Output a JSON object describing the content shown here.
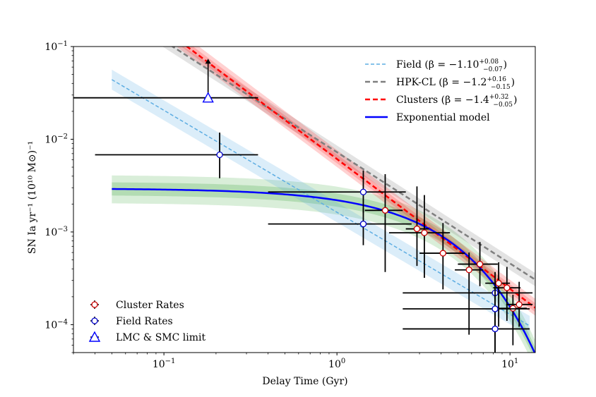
{
  "chart_data": {
    "type": "scatter",
    "title": "",
    "xlabel": "Delay Time (Gyr)",
    "ylabel": "SN Ia yr⁻¹ (10¹⁰ M⊙)⁻¹",
    "xscale": "log",
    "yscale": "log",
    "xlim": [
      0.03,
      14
    ],
    "ylim": [
      5e-05,
      0.1
    ],
    "x_ticks": [
      {
        "base": "10",
        "exp": "−1",
        "value": 0.1
      },
      {
        "base": "10",
        "exp": "0",
        "value": 1
      },
      {
        "base": "10",
        "exp": "1",
        "value": 10
      }
    ],
    "y_ticks": [
      {
        "base": "10",
        "exp": "−4",
        "value": 0.0001
      },
      {
        "base": "10",
        "exp": "−3",
        "value": 0.001
      },
      {
        "base": "10",
        "exp": "−2",
        "value": 0.01
      },
      {
        "base": "10",
        "exp": "−1",
        "value": 0.1
      }
    ],
    "legend_top": [
      {
        "key": "field",
        "text": "Field (β = −1.10",
        "sup": "+0.08",
        "sub": "−0.07",
        "close": ")",
        "color": "#5dade2",
        "style": "dashed"
      },
      {
        "key": "hpk",
        "text": "HPK-CL (β = −1.2",
        "sup": "+0.16",
        "sub": "−0.15",
        "close": ")",
        "color": "#7f7f7f",
        "style": "dashed"
      },
      {
        "key": "clusters",
        "text": "Clusters (β = −1.4",
        "sup": "+0.32",
        "sub": "−0.05",
        "close": ")",
        "color": "#ff0000",
        "style": "dashed"
      },
      {
        "key": "exp",
        "text": "Exponential model",
        "sup": "",
        "sub": "",
        "close": "",
        "color": "#0000ff",
        "style": "solid"
      }
    ],
    "legend_bottom": [
      {
        "text": "Cluster Rates",
        "marker": "circle",
        "edge": "#cc0000",
        "face": "#ffffff"
      },
      {
        "text": "Field Rates",
        "marker": "circle",
        "edge": "#0000cc",
        "face": "#ffffff"
      },
      {
        "text": "LMC & SMC limit",
        "marker": "triangle",
        "edge": "#0000ff",
        "face": "#ffffff"
      }
    ],
    "models": {
      "field": {
        "x_range": [
          0.05,
          13
        ],
        "anchor_x": 1,
        "anchor_y": 0.00163,
        "slope": -1.1,
        "band": [
          0.78,
          1.28
        ],
        "color": "#5dade2"
      },
      "hpk": {
        "x_range": [
          0.05,
          14
        ],
        "anchor_x": 1,
        "anchor_y": 0.00725,
        "slope": -1.2,
        "band": [
          0.85,
          1.18
        ],
        "color": "#7f7f7f"
      },
      "clusters": {
        "x_range": [
          0.05,
          14
        ],
        "anchor_x": 1,
        "anchor_y": 0.00612,
        "slope": -1.4,
        "band": [
          0.82,
          1.25
        ],
        "color": "#ff0000"
      },
      "exponential": {
        "x_range": [
          0.05,
          14
        ],
        "amplitude": 0.00295,
        "tau": 3.4,
        "band": [
          0.7,
          1.4
        ],
        "color": "#0000ff"
      }
    },
    "cluster_rates": [
      {
        "x": 1.9,
        "y": 0.00171,
        "xerr": [
          1.45,
          2.4
        ],
        "yerr": [
          0.00037,
          0.0042
        ]
      },
      {
        "x": 2.9,
        "y": 0.00108,
        "xerr": [
          2.5,
          3.4
        ],
        "yerr": [
          0.00043,
          0.0031
        ]
      },
      {
        "x": 3.2,
        "y": 0.00098,
        "xerr": [
          2.0,
          4.5
        ],
        "yerr": [
          0.00032,
          0.0025
        ]
      },
      {
        "x": 4.1,
        "y": 0.00059,
        "xerr": [
          3.0,
          5.5
        ],
        "yerr": [
          0.00024,
          0.00125
        ]
      },
      {
        "x": 5.8,
        "y": 0.00039,
        "xerr": [
          4.8,
          7.0
        ],
        "yerr": [
          7.8e-05,
          0.0006
        ]
      },
      {
        "x": 6.7,
        "y": 0.00045,
        "xerr": [
          5.0,
          8.5
        ],
        "yerr": [
          0.00026,
          0.00078
        ]
      },
      {
        "x": 8.6,
        "y": 0.00028,
        "xerr": [
          7.2,
          10.0
        ],
        "yerr": [
          9.5e-05,
          0.00047
        ]
      },
      {
        "x": 9.6,
        "y": 0.00025,
        "xerr": [
          8.0,
          11.5
        ],
        "yerr": [
          0.00011,
          0.00042
        ]
      },
      {
        "x": 10.4,
        "y": 0.00015,
        "xerr": [
          8.5,
          12.5
        ],
        "yerr": [
          6e-05,
          0.00021
        ]
      },
      {
        "x": 11.3,
        "y": 0.000165,
        "xerr": [
          9.5,
          13.5
        ],
        "yerr": [
          9.5e-05,
          0.00029
        ]
      }
    ],
    "field_rates": [
      {
        "x": 0.21,
        "y": 0.0068,
        "xerr": [
          0.04,
          0.35
        ],
        "yerr": [
          0.0038,
          0.0118
        ]
      },
      {
        "x": 1.42,
        "y": 0.0027,
        "xerr": [
          0.4,
          2.5
        ],
        "yerr": [
          0.0016,
          0.0046
        ]
      },
      {
        "x": 1.42,
        "y": 0.00122,
        "xerr": [
          0.4,
          2.7
        ],
        "yerr": [
          0.00072,
          0.0018
        ]
      },
      {
        "x": 8.2,
        "y": 0.00022,
        "xerr": [
          2.4,
          13.5
        ],
        "yerr": [
          7.5e-05,
          0.00037
        ]
      },
      {
        "x": 8.2,
        "y": 0.000148,
        "xerr": [
          2.4,
          13.0
        ],
        "yerr": [
          5e-05,
          0.00025
        ]
      },
      {
        "x": 8.2,
        "y": 9e-05,
        "xerr": [
          2.4,
          13.0
        ],
        "yerr": [
          5e-05,
          0.00013
        ]
      }
    ],
    "lmc_smc_limit": {
      "x": 0.18,
      "y": 0.028,
      "xerr": [
        0.03,
        0.35
      ],
      "arrow_to": 0.074
    }
  }
}
